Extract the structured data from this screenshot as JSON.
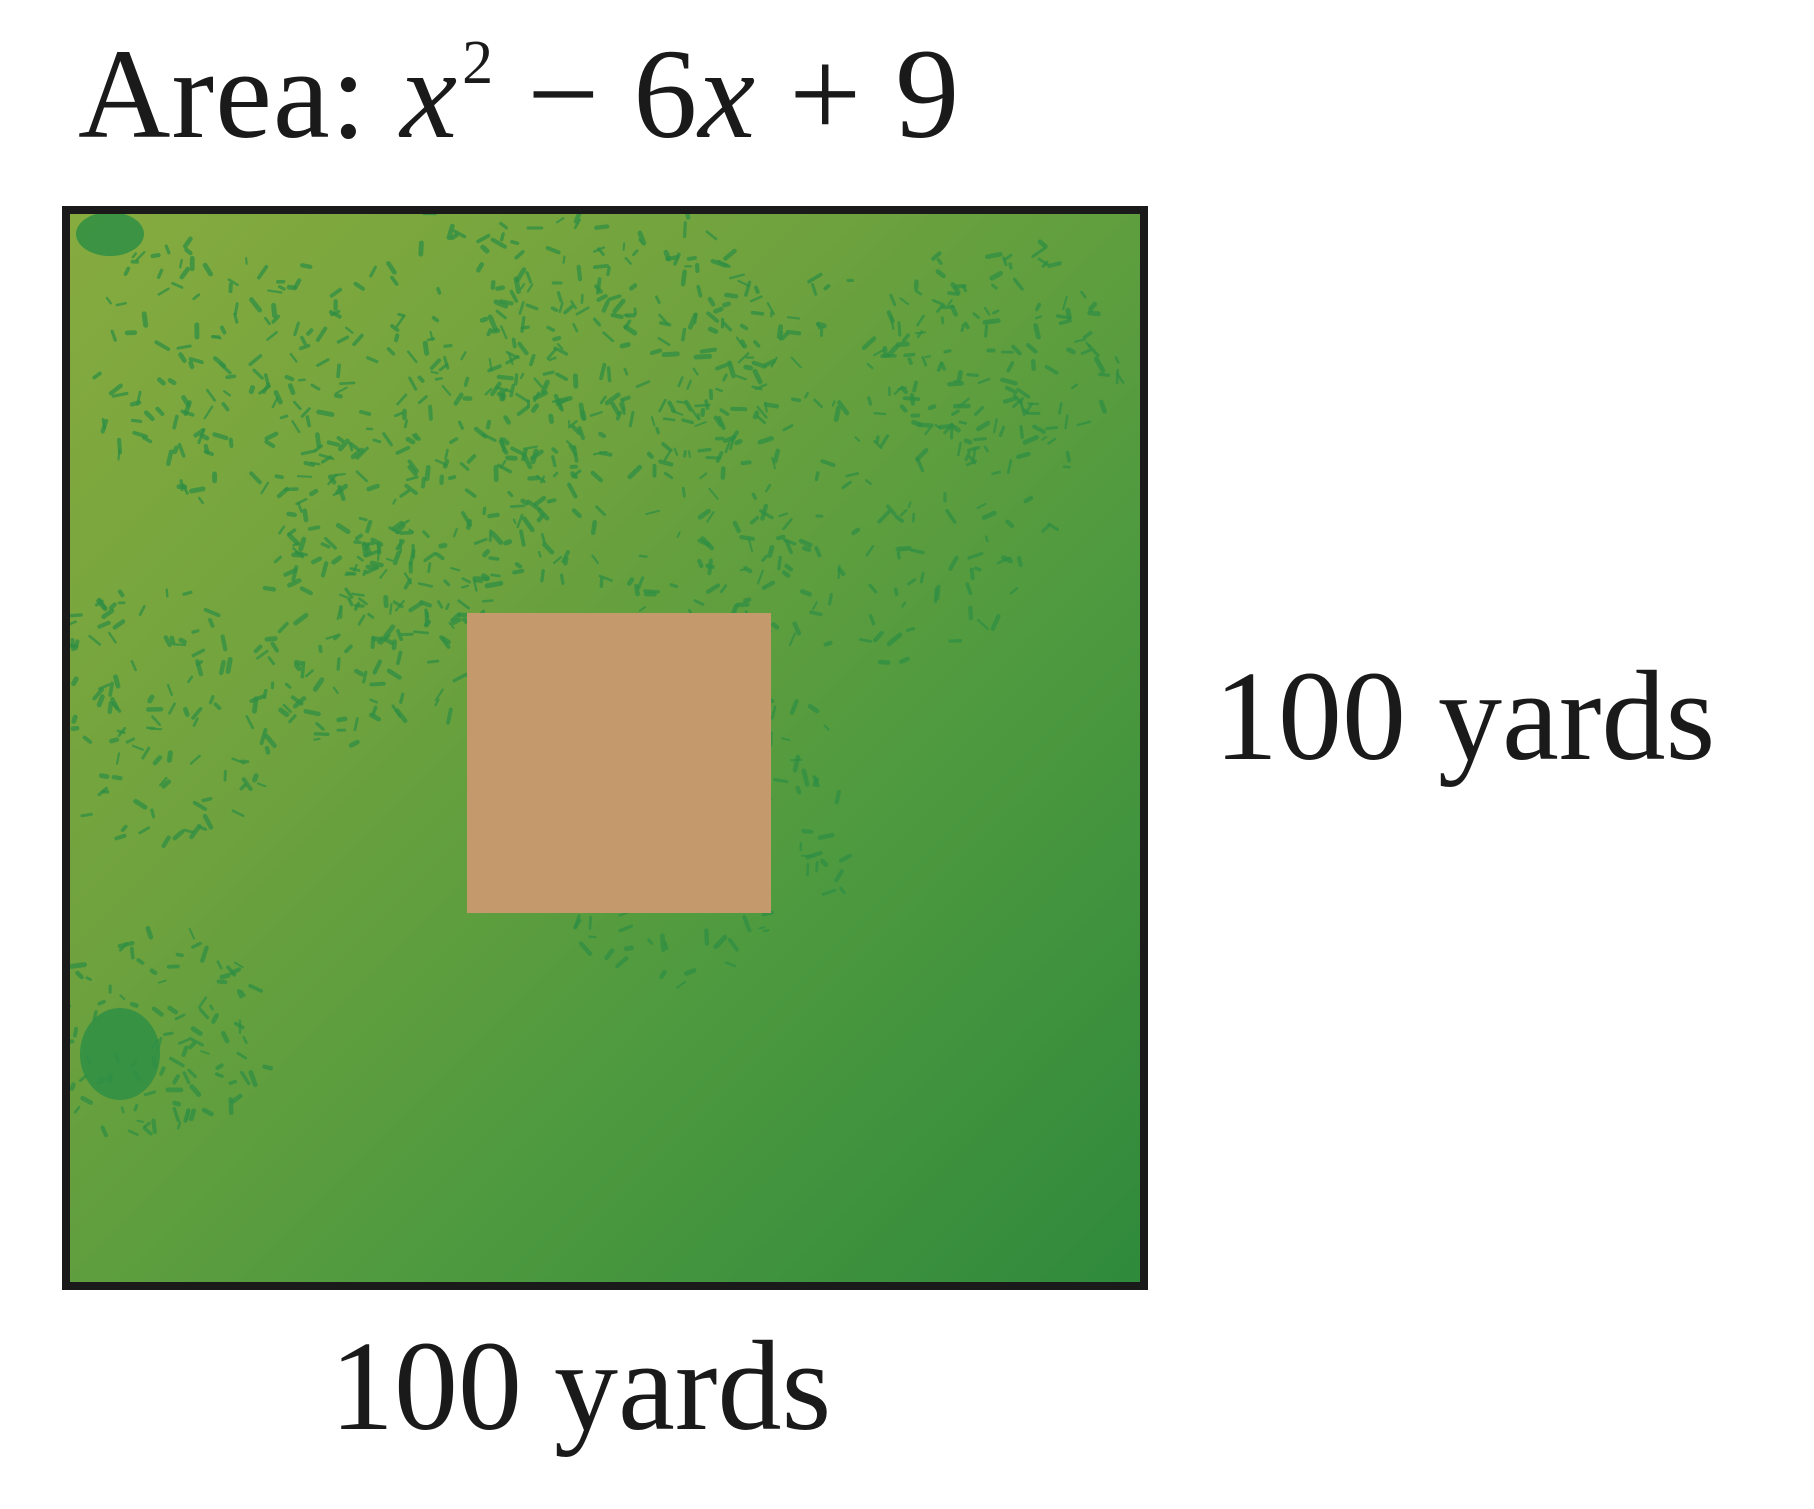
{
  "area_label": {
    "prefix": "Area: ",
    "variable": "x",
    "exponent": "2",
    "rest_part1": " − 6",
    "rest_var": "x",
    "rest_part2": " + 9"
  },
  "side_label": "100 yards",
  "bottom_label": "100 yards",
  "colors": {
    "field_light": "#86ab3f",
    "field_dark": "#2f8a3c",
    "texture": "#2f8f44",
    "bunker": "#c49a6c",
    "border": "#1a1a1a"
  }
}
